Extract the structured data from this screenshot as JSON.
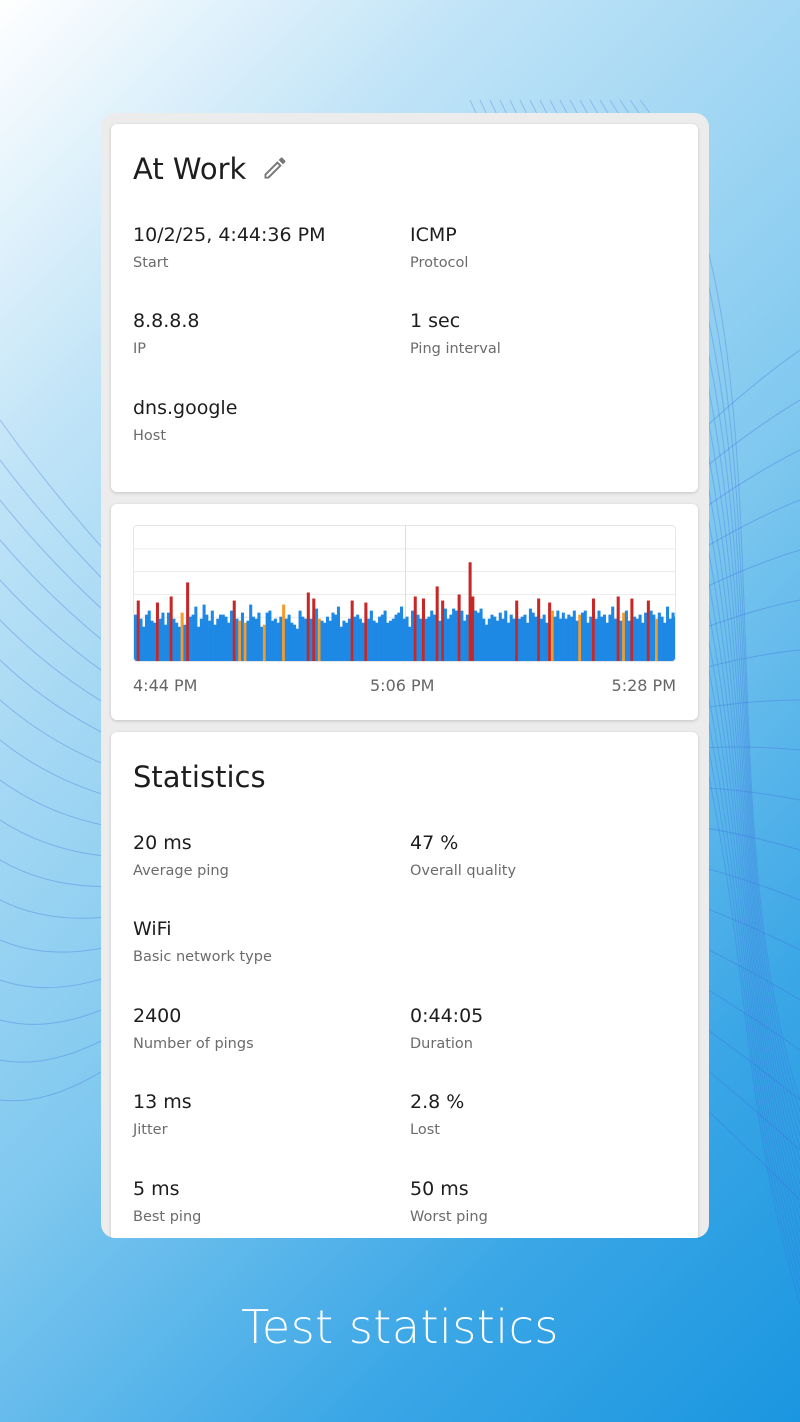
{
  "session": {
    "title": "At Work",
    "edit_icon": "pencil-icon",
    "fields": [
      {
        "value": "10/2/25, 4:44:36 PM",
        "label": "Start"
      },
      {
        "value": "ICMP",
        "label": "Protocol"
      },
      {
        "value": "8.8.8.8",
        "label": "IP"
      },
      {
        "value": "1 sec",
        "label": "Ping interval"
      },
      {
        "value": "dns.google",
        "label": "Host"
      }
    ]
  },
  "chart_data": {
    "type": "bar",
    "x_ticks": [
      "4:44 PM",
      "5:06 PM",
      "5:28 PM"
    ],
    "ylabel": "",
    "xlabel": "",
    "ylim": [
      0,
      68
    ],
    "grid": true,
    "colors": {
      "normal": "#1e88e5",
      "high": "#c62828",
      "warn": "#f59b2a"
    },
    "high_threshold": 30,
    "values": [
      24,
      31,
      22,
      18,
      24,
      26,
      21,
      20,
      30,
      22,
      25,
      19,
      25,
      33,
      22,
      20,
      18,
      25,
      19,
      40,
      23,
      24,
      28,
      18,
      22,
      29,
      24,
      21,
      26,
      19,
      22,
      24,
      24,
      23,
      20,
      26,
      31,
      22,
      21,
      25,
      20,
      21,
      29,
      23,
      22,
      25,
      18,
      19,
      25,
      26,
      21,
      22,
      20,
      23,
      29,
      22,
      24,
      20,
      19,
      17,
      26,
      23,
      22,
      35,
      22,
      32,
      27,
      22,
      21,
      20,
      23,
      21,
      25,
      24,
      28,
      18,
      21,
      20,
      22,
      31,
      23,
      24,
      22,
      20,
      30,
      22,
      26,
      21,
      20,
      23,
      24,
      26,
      20,
      21,
      22,
      24,
      25,
      28,
      22,
      23,
      18,
      26,
      33,
      24,
      22,
      32,
      22,
      23,
      26,
      24,
      38,
      21,
      31,
      27,
      22,
      24,
      27,
      26,
      34,
      26,
      21,
      24,
      50,
      33,
      26,
      25,
      27,
      22,
      19,
      22,
      24,
      23,
      21,
      25,
      22,
      26,
      20,
      24,
      22,
      31,
      22,
      23,
      24,
      20,
      27,
      25,
      23,
      32,
      22,
      24,
      20,
      30,
      26,
      23,
      26,
      22,
      25,
      22,
      24,
      23,
      26,
      21,
      24,
      25,
      26,
      20,
      23,
      32,
      22,
      26,
      23,
      24,
      20,
      24,
      28,
      22,
      33,
      21,
      25,
      26,
      21,
      32,
      23,
      22,
      24,
      20,
      25,
      31,
      26,
      24,
      22,
      25,
      23,
      20,
      28,
      22,
      25,
      23
    ],
    "warn_indices": [
      17,
      38,
      40,
      47,
      54,
      67,
      84,
      112,
      118,
      152,
      162,
      178,
      190,
      203
    ]
  },
  "statistics": {
    "title": "Statistics",
    "fields": [
      {
        "value": "20 ms",
        "label": "Average ping"
      },
      {
        "value": "47 %",
        "label": "Overall quality"
      },
      {
        "value": "WiFi",
        "label": "Basic network type"
      },
      {
        "value": "2400",
        "label": "Number of pings"
      },
      {
        "value": "0:44:05",
        "label": "Duration"
      },
      {
        "value": "13 ms",
        "label": "Jitter"
      },
      {
        "value": "2.8 %",
        "label": "Lost"
      },
      {
        "value": "5 ms",
        "label": "Best ping"
      },
      {
        "value": "50 ms",
        "label": "Worst ping"
      }
    ]
  },
  "caption": "Test statistics"
}
